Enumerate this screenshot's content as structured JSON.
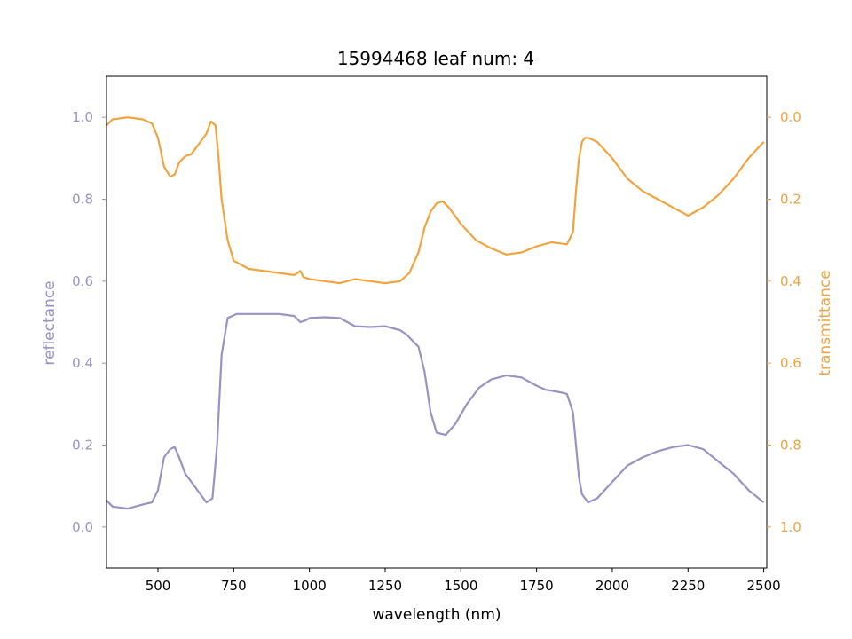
{
  "chart_data": {
    "type": "line",
    "title": "15994468 leaf num: 4",
    "xlabel": "wavelength (nm)",
    "ylabel_left": "reflectance",
    "ylabel_right": "transmittance",
    "xlim": [
      330,
      2510
    ],
    "ylim_left": [
      -0.1,
      1.1
    ],
    "ylim_right": [
      1.1,
      -0.1
    ],
    "right_axis_inverted": true,
    "x_ticks": [
      500,
      750,
      1000,
      1250,
      1500,
      1750,
      2000,
      2250,
      2500
    ],
    "y_ticks_left": [
      0.0,
      0.2,
      0.4,
      0.6,
      0.8,
      1.0
    ],
    "y_ticks_right": [
      0.0,
      0.2,
      0.4,
      0.6,
      0.8,
      1.0
    ],
    "grid": false,
    "legend": "none",
    "colors": {
      "reflectance": "#9a91c4",
      "transmittance": "#f0a43f",
      "axis": "#000000"
    },
    "series": [
      {
        "name": "reflectance",
        "axis": "left",
        "x": [
          330,
          350,
          400,
          450,
          480,
          500,
          520,
          540,
          555,
          570,
          590,
          610,
          640,
          660,
          680,
          695,
          710,
          730,
          760,
          800,
          850,
          900,
          950,
          970,
          990,
          1000,
          1050,
          1100,
          1150,
          1200,
          1250,
          1300,
          1320,
          1360,
          1380,
          1400,
          1420,
          1450,
          1480,
          1520,
          1560,
          1600,
          1650,
          1700,
          1750,
          1780,
          1820,
          1850,
          1870,
          1880,
          1890,
          1900,
          1910,
          1920,
          1950,
          2000,
          2050,
          2100,
          2150,
          2200,
          2250,
          2300,
          2350,
          2400,
          2450,
          2500
        ],
        "y": [
          0.065,
          0.05,
          0.045,
          0.055,
          0.06,
          0.09,
          0.17,
          0.19,
          0.195,
          0.17,
          0.13,
          0.11,
          0.08,
          0.06,
          0.07,
          0.2,
          0.42,
          0.51,
          0.52,
          0.52,
          0.52,
          0.52,
          0.515,
          0.5,
          0.505,
          0.51,
          0.512,
          0.51,
          0.49,
          0.488,
          0.49,
          0.48,
          0.47,
          0.44,
          0.38,
          0.28,
          0.23,
          0.225,
          0.25,
          0.3,
          0.34,
          0.36,
          0.37,
          0.365,
          0.345,
          0.335,
          0.33,
          0.325,
          0.28,
          0.2,
          0.12,
          0.08,
          0.07,
          0.06,
          0.07,
          0.11,
          0.15,
          0.17,
          0.185,
          0.195,
          0.2,
          0.19,
          0.16,
          0.13,
          0.09,
          0.06
        ]
      },
      {
        "name": "transmittance",
        "axis": "right",
        "x": [
          330,
          350,
          400,
          450,
          480,
          500,
          520,
          540,
          555,
          570,
          590,
          610,
          640,
          660,
          675,
          690,
          700,
          710,
          730,
          750,
          800,
          900,
          950,
          970,
          980,
          1000,
          1050,
          1100,
          1150,
          1200,
          1250,
          1300,
          1330,
          1360,
          1380,
          1400,
          1420,
          1440,
          1460,
          1500,
          1550,
          1600,
          1650,
          1700,
          1750,
          1800,
          1850,
          1870,
          1880,
          1890,
          1900,
          1910,
          1920,
          1950,
          2000,
          2050,
          2100,
          2150,
          2200,
          2250,
          2300,
          2350,
          2400,
          2450,
          2500
        ],
        "y": [
          0.02,
          0.005,
          0.0,
          0.005,
          0.015,
          0.05,
          0.12,
          0.145,
          0.14,
          0.11,
          0.095,
          0.09,
          0.06,
          0.04,
          0.01,
          0.02,
          0.1,
          0.2,
          0.3,
          0.35,
          0.37,
          0.38,
          0.385,
          0.375,
          0.39,
          0.395,
          0.4,
          0.405,
          0.395,
          0.4,
          0.405,
          0.4,
          0.38,
          0.33,
          0.27,
          0.23,
          0.21,
          0.205,
          0.22,
          0.26,
          0.3,
          0.32,
          0.335,
          0.33,
          0.315,
          0.305,
          0.31,
          0.28,
          0.18,
          0.1,
          0.06,
          0.05,
          0.05,
          0.06,
          0.1,
          0.15,
          0.18,
          0.2,
          0.22,
          0.24,
          0.22,
          0.19,
          0.15,
          0.1,
          0.06
        ]
      }
    ]
  }
}
